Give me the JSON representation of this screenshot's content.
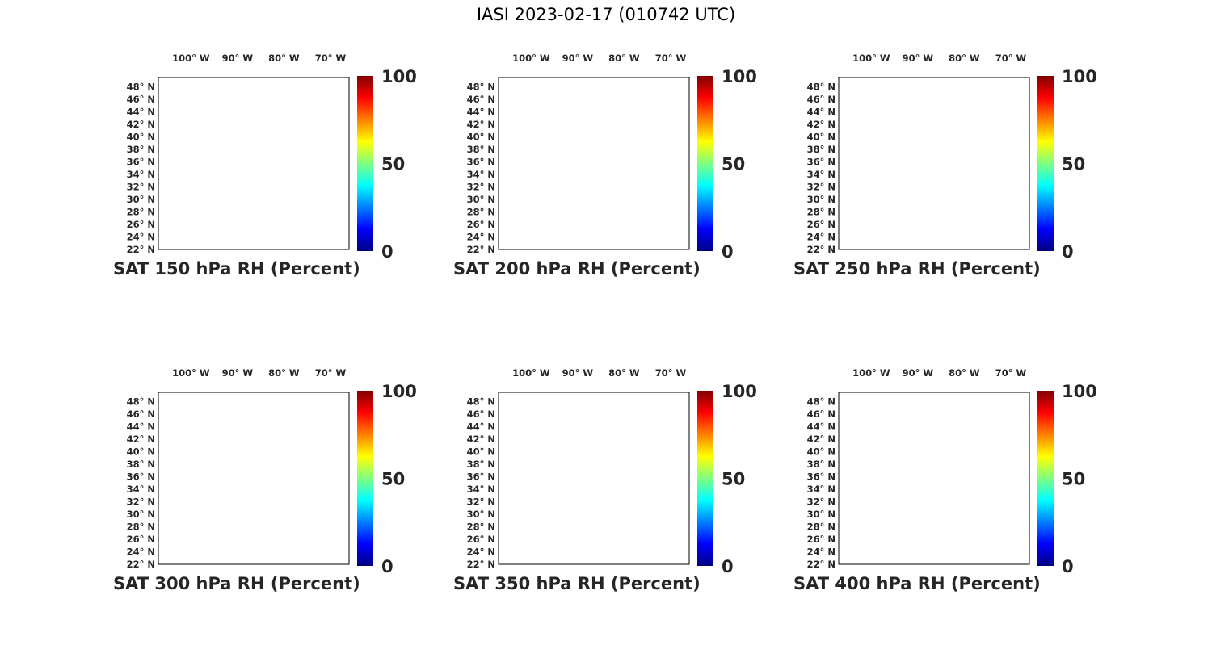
{
  "figure": {
    "title": "IASI 2023-02-17 (010742 UTC)"
  },
  "axes": {
    "lon_labels": [
      "100° W",
      "90° W",
      "80° W",
      "70° W"
    ],
    "lon_values": [
      -100,
      -90,
      -80,
      -70
    ],
    "lat_labels": [
      "48° N",
      "46° N",
      "44° N",
      "42° N",
      "40° N",
      "38° N",
      "36° N",
      "34° N",
      "32° N",
      "30° N",
      "28° N",
      "26° N",
      "24° N",
      "22° N"
    ],
    "lat_values": [
      48,
      46,
      44,
      42,
      40,
      38,
      36,
      34,
      32,
      30,
      28,
      26,
      24,
      22
    ],
    "lon_range": [
      -107,
      -66
    ],
    "lat_range": [
      22,
      49.5
    ]
  },
  "colorbar": {
    "ticks": [
      "100",
      "50",
      "0"
    ],
    "range": [
      0,
      100
    ],
    "colormap": "jet"
  },
  "panels": [
    {
      "caption": "SAT 150 hPa RH (Percent)",
      "level": 150
    },
    {
      "caption": "SAT 200 hPa RH (Percent)",
      "level": 200
    },
    {
      "caption": "SAT 250 hPa RH (Percent)",
      "level": 250
    },
    {
      "caption": "SAT 300 hPa RH (Percent)",
      "level": 300
    },
    {
      "caption": "SAT 350 hPa RH (Percent)",
      "level": 350
    },
    {
      "caption": "SAT 400 hPa RH (Percent)",
      "level": 400
    }
  ],
  "colors": {
    "outline": "#000000",
    "text": "#262626"
  }
}
